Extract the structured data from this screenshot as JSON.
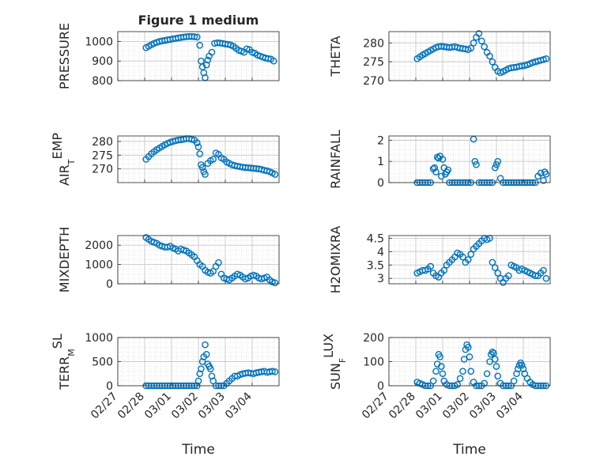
{
  "figure": {
    "title": "Figure 1 medium",
    "xlabel": "Time",
    "accent": "#0072BD",
    "x_ticks": [
      "02/27",
      "02/28",
      "03/01",
      "03/02",
      "03/03",
      "03/04"
    ]
  },
  "chart_data": [
    {
      "type": "scatter",
      "ylabel": "PRESSURE",
      "ylim": [
        800,
        1050
      ],
      "yticks": [
        "800",
        "900",
        "1000"
      ],
      "ytick_values": [
        800,
        900,
        1000
      ],
      "xlim": [
        0,
        6
      ],
      "grid": true,
      "x": [
        1.05,
        1.15,
        1.25,
        1.35,
        1.45,
        1.55,
        1.65,
        1.75,
        1.85,
        1.95,
        2.05,
        2.15,
        2.25,
        2.35,
        2.45,
        2.55,
        2.65,
        2.75,
        2.85,
        2.95,
        3.05,
        3.1,
        3.15,
        3.2,
        3.25,
        3.3,
        3.35,
        3.4,
        3.5,
        3.6,
        3.7,
        3.8,
        3.9,
        4.0,
        4.1,
        4.2,
        4.3,
        4.4,
        4.5,
        4.6,
        4.7,
        4.8,
        4.9,
        5.0,
        5.1,
        5.2,
        5.3,
        5.4,
        5.5,
        5.6,
        5.7,
        5.8
      ],
      "y": [
        968,
        975,
        983,
        990,
        995,
        1000,
        1003,
        1005,
        1008,
        1010,
        1013,
        1015,
        1018,
        1020,
        1022,
        1024,
        1025,
        1025,
        1024,
        1022,
        980,
        900,
        870,
        840,
        815,
        880,
        905,
        925,
        945,
        990,
        993,
        992,
        990,
        987,
        985,
        982,
        975,
        965,
        955,
        950,
        945,
        962,
        958,
        945,
        940,
        930,
        925,
        920,
        915,
        912,
        910,
        900
      ]
    },
    {
      "type": "scatter",
      "ylabel": "THETA",
      "ylim": [
        270,
        283
      ],
      "yticks": [
        "270",
        "275",
        "280"
      ],
      "ytick_values": [
        270,
        275,
        280
      ],
      "xlim": [
        0,
        6
      ],
      "grid": true,
      "x": [
        1.05,
        1.15,
        1.25,
        1.35,
        1.45,
        1.55,
        1.65,
        1.75,
        1.85,
        1.95,
        2.05,
        2.15,
        2.25,
        2.35,
        2.45,
        2.55,
        2.65,
        2.75,
        2.85,
        2.95,
        3.05,
        3.15,
        3.25,
        3.35,
        3.45,
        3.55,
        3.65,
        3.75,
        3.85,
        3.95,
        4.05,
        4.15,
        4.25,
        4.35,
        4.45,
        4.55,
        4.65,
        4.75,
        4.85,
        4.95,
        5.05,
        5.15,
        5.25,
        5.35,
        5.45,
        5.55,
        5.65,
        5.75,
        5.85
      ],
      "y": [
        275.8,
        276.3,
        276.8,
        277.2,
        277.6,
        278,
        278.4,
        278.8,
        279,
        279.1,
        279.0,
        278.9,
        278.8,
        278.9,
        279.0,
        278.8,
        278.6,
        278.5,
        278.4,
        278.2,
        278.6,
        280,
        281.5,
        282.5,
        280.5,
        279,
        277.5,
        276.5,
        275,
        273.5,
        272.5,
        272.1,
        272.4,
        272.8,
        273.2,
        273.4,
        273.5,
        273.6,
        273.8,
        273.9,
        274,
        274.2,
        274.5,
        274.8,
        275,
        275.2,
        275.4,
        275.6,
        275.8
      ]
    },
    {
      "type": "scatter",
      "ylabel": "AIR_TEMP",
      "ylim": [
        265,
        282
      ],
      "yticks": [
        "270",
        "275",
        "280"
      ],
      "ytick_values": [
        270,
        275,
        280
      ],
      "xlim": [
        0,
        6
      ],
      "grid": true,
      "x": [
        1.05,
        1.15,
        1.25,
        1.35,
        1.45,
        1.55,
        1.65,
        1.75,
        1.85,
        1.95,
        2.05,
        2.15,
        2.25,
        2.35,
        2.45,
        2.55,
        2.65,
        2.75,
        2.85,
        2.95,
        3.0,
        3.05,
        3.1,
        3.15,
        3.2,
        3.25,
        3.35,
        3.45,
        3.55,
        3.65,
        3.75,
        3.85,
        3.95,
        4.05,
        4.15,
        4.25,
        4.35,
        4.45,
        4.55,
        4.65,
        4.75,
        4.85,
        4.95,
        5.05,
        5.15,
        5.25,
        5.35,
        5.45,
        5.55,
        5.65,
        5.75,
        5.85
      ],
      "y": [
        273.5,
        274.5,
        275.5,
        276.3,
        277,
        277.6,
        278.2,
        278.8,
        279.3,
        279.7,
        280,
        280.3,
        280.5,
        280.6,
        280.8,
        281,
        281,
        280.8,
        280.5,
        279.5,
        278,
        275.5,
        271.5,
        270.5,
        269,
        268,
        272,
        273,
        273.5,
        275.8,
        275.3,
        274,
        273.5,
        272.5,
        272,
        271.5,
        271.2,
        271,
        270.8,
        270.6,
        270.5,
        270.4,
        270.3,
        270.2,
        270.1,
        270,
        269.8,
        269.5,
        269.3,
        269,
        268.5,
        268
      ]
    },
    {
      "type": "scatter",
      "ylabel": "RAINFALL",
      "ylim": [
        0,
        2.2
      ],
      "yticks": [
        "0",
        "1",
        "2"
      ],
      "ytick_values": [
        0,
        1,
        2
      ],
      "xlim": [
        0,
        6
      ],
      "grid": true,
      "x": [
        1.05,
        1.15,
        1.25,
        1.35,
        1.45,
        1.55,
        1.65,
        1.7,
        1.75,
        1.8,
        1.85,
        1.9,
        1.95,
        2.0,
        2.05,
        2.1,
        2.15,
        2.2,
        2.25,
        2.35,
        2.45,
        2.55,
        2.65,
        2.75,
        2.85,
        2.95,
        3.05,
        3.15,
        3.2,
        3.25,
        3.35,
        3.45,
        3.55,
        3.65,
        3.75,
        3.85,
        3.95,
        4.0,
        4.05,
        4.15,
        4.25,
        4.35,
        4.45,
        4.55,
        4.65,
        4.75,
        4.85,
        4.95,
        5.05,
        5.15,
        5.25,
        5.35,
        5.45,
        5.55,
        5.65,
        5.75,
        5.8,
        5.85
      ],
      "y": [
        0,
        0,
        0,
        0,
        0,
        0,
        0.65,
        0.7,
        0.5,
        1.2,
        1.15,
        1.25,
        0.3,
        1.1,
        0.7,
        0.4,
        0.5,
        0.6,
        0,
        0,
        0,
        0,
        0,
        0,
        0,
        0,
        0,
        2.05,
        1.0,
        0.85,
        0,
        0,
        0,
        0,
        0,
        0,
        0.7,
        0.85,
        1.0,
        0.2,
        0,
        0,
        0,
        0,
        0,
        0,
        0,
        0,
        0,
        0,
        0,
        0,
        0,
        0.3,
        0.45,
        0.1,
        0.5,
        0.4
      ]
    },
    {
      "type": "scatter",
      "ylabel": "MIXDEPTH",
      "ylim": [
        0,
        2500
      ],
      "yticks": [
        "0",
        "1000",
        "2000"
      ],
      "ytick_values": [
        0,
        1000,
        2000
      ],
      "xlim": [
        0,
        6
      ],
      "grid": true,
      "x": [
        1.05,
        1.15,
        1.25,
        1.35,
        1.45,
        1.55,
        1.65,
        1.75,
        1.85,
        1.95,
        2.05,
        2.15,
        2.25,
        2.35,
        2.45,
        2.55,
        2.65,
        2.75,
        2.85,
        2.95,
        3.05,
        3.15,
        3.25,
        3.35,
        3.45,
        3.55,
        3.65,
        3.75,
        3.85,
        3.95,
        4.05,
        4.15,
        4.25,
        4.35,
        4.45,
        4.55,
        4.65,
        4.75,
        4.85,
        4.95,
        5.05,
        5.15,
        5.25,
        5.35,
        5.45,
        5.55,
        5.65,
        5.75,
        5.85
      ],
      "y": [
        2400,
        2300,
        2200,
        2150,
        2100,
        2000,
        1950,
        1900,
        1900,
        1950,
        1850,
        1800,
        1700,
        1800,
        1750,
        1700,
        1600,
        1500,
        1400,
        1200,
        1000,
        900,
        700,
        600,
        550,
        650,
        900,
        1100,
        500,
        300,
        250,
        200,
        300,
        400,
        500,
        450,
        350,
        250,
        300,
        400,
        450,
        400,
        300,
        250,
        300,
        350,
        200,
        100,
        50
      ]
    },
    {
      "type": "scatter",
      "ylabel": "H2OMIXRA",
      "ylim": [
        2.8,
        4.6
      ],
      "yticks": [
        "3",
        "3.5",
        "4",
        "4.5"
      ],
      "ytick_values": [
        3,
        3.5,
        4,
        4.5
      ],
      "xlim": [
        0,
        6
      ],
      "grid": true,
      "x": [
        1.05,
        1.15,
        1.25,
        1.35,
        1.45,
        1.55,
        1.65,
        1.75,
        1.85,
        1.95,
        2.05,
        2.15,
        2.25,
        2.35,
        2.45,
        2.55,
        2.65,
        2.75,
        2.85,
        2.95,
        3.05,
        3.15,
        3.25,
        3.35,
        3.45,
        3.55,
        3.65,
        3.75,
        3.85,
        3.95,
        4.05,
        4.15,
        4.25,
        4.35,
        4.45,
        4.55,
        4.65,
        4.75,
        4.85,
        4.95,
        5.05,
        5.15,
        5.25,
        5.35,
        5.45,
        5.55,
        5.65,
        5.75,
        5.85
      ],
      "y": [
        3.2,
        3.25,
        3.3,
        3.3,
        3.35,
        3.45,
        3.2,
        3.1,
        3.05,
        3.2,
        3.3,
        3.5,
        3.6,
        3.7,
        3.8,
        3.95,
        3.9,
        3.8,
        3.6,
        3.7,
        3.9,
        4.1,
        4.2,
        4.3,
        4.4,
        4.5,
        4.45,
        4.5,
        3.6,
        3.4,
        3.2,
        3.0,
        2.85,
        3.0,
        3.1,
        3.5,
        3.45,
        3.4,
        3.3,
        3.35,
        3.3,
        3.25,
        3.2,
        3.15,
        3.1,
        3.1,
        3.2,
        3.3,
        3.0
      ]
    },
    {
      "type": "scatter",
      "ylabel": "TERR_MSL",
      "ylim": [
        0,
        1000
      ],
      "yticks": [
        "0",
        "500",
        "1000"
      ],
      "ytick_values": [
        0,
        500,
        1000
      ],
      "xlim": [
        0,
        6
      ],
      "grid": true,
      "x": [
        1.05,
        1.15,
        1.25,
        1.35,
        1.45,
        1.55,
        1.65,
        1.75,
        1.85,
        1.95,
        2.05,
        2.15,
        2.25,
        2.35,
        2.45,
        2.55,
        2.65,
        2.75,
        2.85,
        2.95,
        3.0,
        3.05,
        3.1,
        3.15,
        3.2,
        3.25,
        3.3,
        3.35,
        3.4,
        3.45,
        3.5,
        3.55,
        3.65,
        3.75,
        3.85,
        3.95,
        4.05,
        4.15,
        4.25,
        4.35,
        4.45,
        4.55,
        4.65,
        4.75,
        4.85,
        4.95,
        5.05,
        5.15,
        5.25,
        5.35,
        5.45,
        5.55,
        5.65,
        5.75,
        5.85
      ],
      "y": [
        0,
        0,
        0,
        0,
        0,
        0,
        0,
        0,
        0,
        0,
        0,
        0,
        0,
        0,
        0,
        0,
        0,
        0,
        0,
        0,
        100,
        250,
        350,
        500,
        600,
        850,
        650,
        450,
        400,
        350,
        200,
        100,
        0,
        0,
        0,
        0,
        50,
        100,
        150,
        200,
        200,
        230,
        250,
        260,
        270,
        260,
        250,
        270,
        280,
        290,
        300,
        280,
        290,
        300,
        290
      ]
    },
    {
      "type": "scatter",
      "ylabel": "SUN_FLUX",
      "ylim": [
        0,
        200
      ],
      "yticks": [
        "0",
        "100",
        "200"
      ],
      "ytick_values": [
        0,
        100,
        200
      ],
      "xlim": [
        0,
        6
      ],
      "grid": true,
      "x": [
        1.05,
        1.15,
        1.25,
        1.35,
        1.45,
        1.55,
        1.65,
        1.75,
        1.8,
        1.85,
        1.9,
        1.95,
        2.0,
        2.05,
        2.15,
        2.25,
        2.35,
        2.45,
        2.55,
        2.65,
        2.75,
        2.8,
        2.85,
        2.9,
        2.95,
        3.0,
        3.05,
        3.15,
        3.25,
        3.35,
        3.45,
        3.55,
        3.65,
        3.75,
        3.8,
        3.85,
        3.9,
        3.95,
        4.0,
        4.05,
        4.15,
        4.25,
        4.35,
        4.45,
        4.55,
        4.65,
        4.75,
        4.8,
        4.85,
        4.9,
        4.95,
        5.0,
        5.05,
        5.15,
        5.25,
        5.35,
        5.45,
        5.55,
        5.65,
        5.75,
        5.85
      ],
      "y": [
        15,
        10,
        5,
        0,
        0,
        0,
        20,
        60,
        90,
        130,
        120,
        80,
        50,
        20,
        5,
        0,
        0,
        0,
        5,
        30,
        60,
        110,
        150,
        170,
        160,
        120,
        60,
        15,
        0,
        0,
        0,
        10,
        50,
        100,
        130,
        140,
        135,
        110,
        80,
        40,
        10,
        0,
        0,
        0,
        0,
        20,
        50,
        70,
        85,
        95,
        85,
        70,
        50,
        30,
        15,
        5,
        0,
        0,
        0,
        0,
        0
      ]
    }
  ]
}
